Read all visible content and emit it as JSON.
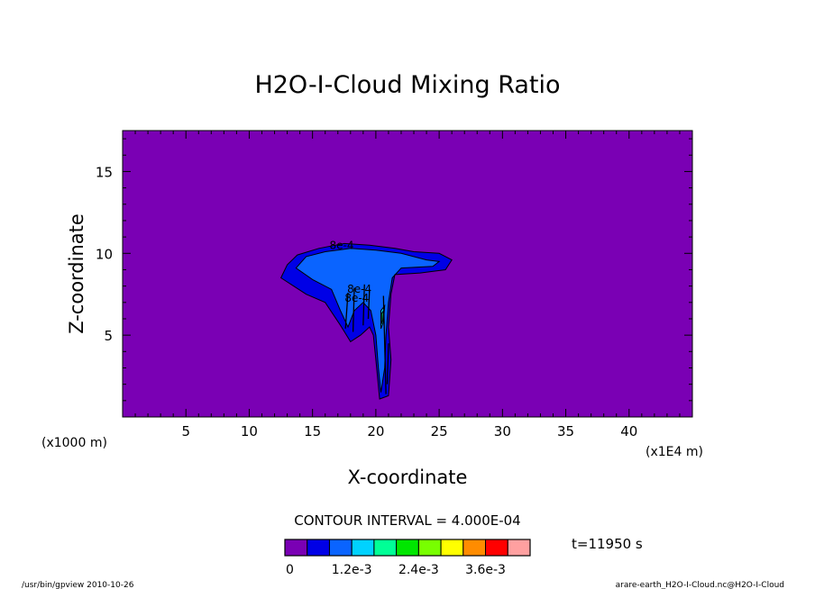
{
  "chart_data": {
    "type": "heatmap",
    "title": "H2O-I-Cloud Mixing Ratio",
    "xlabel": "X-coordinate",
    "ylabel": "Z-coordinate",
    "x_unit": "(x1E4 m)",
    "y_unit": "(x1000 m)",
    "xlim": [
      0,
      45
    ],
    "ylim": [
      0,
      17.5
    ],
    "x_ticks": [
      5,
      10,
      15,
      20,
      25,
      30,
      35,
      40
    ],
    "y_ticks": [
      5,
      10,
      15
    ],
    "contour_interval": "CONTOUR INTERVAL = 4.000E-04",
    "time_label": "t=11950 s",
    "contour_labels": [
      "8e-4",
      "8e-4",
      "8e-4"
    ],
    "colorbar": {
      "tick_labels": [
        "0",
        "1.2e-3",
        "2.4e-3",
        "3.6e-3"
      ],
      "colors": [
        "#7a00b4",
        "#0000e6",
        "#0a64ff",
        "#00d2ff",
        "#00ff96",
        "#00e600",
        "#78ff00",
        "#ffff00",
        "#ff8c00",
        "#ff0000",
        "#ffa0a0"
      ]
    },
    "levels": [
      0,
      0.0004,
      0.0008,
      0.0012,
      0.0016,
      0.002,
      0.0024,
      0.0028,
      0.0032,
      0.0036,
      0.004
    ],
    "background_value": 0,
    "regions": [
      {
        "level": 0.0004,
        "polygon": [
          [
            12.5,
            8.5
          ],
          [
            13.0,
            9.3
          ],
          [
            13.8,
            9.9
          ],
          [
            15.5,
            10.3
          ],
          [
            17.5,
            10.6
          ],
          [
            19.5,
            10.5
          ],
          [
            21.5,
            10.3
          ],
          [
            23.0,
            10.1
          ],
          [
            25.0,
            10.0
          ],
          [
            26.0,
            9.6
          ],
          [
            25.5,
            9.0
          ],
          [
            23.5,
            8.8
          ],
          [
            21.5,
            8.7
          ],
          [
            21.2,
            7.5
          ],
          [
            21.0,
            5.5
          ],
          [
            21.2,
            3.5
          ],
          [
            21.0,
            1.3
          ],
          [
            20.3,
            1.1
          ],
          [
            20.0,
            3.5
          ],
          [
            19.8,
            5.0
          ],
          [
            19.5,
            5.5
          ],
          [
            18.8,
            5.0
          ],
          [
            18.0,
            4.6
          ],
          [
            17.2,
            5.6
          ],
          [
            16.0,
            7.0
          ],
          [
            14.5,
            7.5
          ],
          [
            13.5,
            8.0
          ]
        ]
      },
      {
        "level": 0.0008,
        "polygon": [
          [
            13.7,
            9.1
          ],
          [
            14.5,
            9.8
          ],
          [
            16.0,
            10.1
          ],
          [
            18.0,
            10.3
          ],
          [
            20.0,
            10.2
          ],
          [
            22.0,
            10.0
          ],
          [
            24.0,
            9.6
          ],
          [
            25.0,
            9.5
          ],
          [
            24.5,
            9.2
          ],
          [
            22.0,
            9.1
          ],
          [
            21.3,
            8.5
          ],
          [
            21.0,
            7.0
          ],
          [
            20.8,
            5.0
          ],
          [
            20.7,
            3.0
          ],
          [
            20.4,
            1.5
          ],
          [
            20.2,
            3.0
          ],
          [
            20.0,
            5.0
          ],
          [
            19.6,
            6.5
          ],
          [
            19.0,
            7.0
          ],
          [
            18.3,
            6.5
          ],
          [
            17.8,
            5.5
          ],
          [
            17.2,
            6.5
          ],
          [
            16.5,
            7.8
          ],
          [
            15.0,
            8.4
          ]
        ]
      },
      {
        "level": 0.0012,
        "polygon": [
          [
            20.4,
            6.5
          ],
          [
            20.7,
            6.8
          ],
          [
            20.6,
            5.8
          ],
          [
            20.4,
            5.4
          ]
        ]
      },
      {
        "level": 0.0016,
        "polygon": [
          [
            20.45,
            6.3
          ],
          [
            20.6,
            6.5
          ],
          [
            20.55,
            5.9
          ],
          [
            20.45,
            5.7
          ]
        ]
      }
    ]
  },
  "footer": {
    "left": "/usr/bin/gpview  2010-10-26",
    "right": "arare-earth_H2O-I-Cloud.nc@H2O-I-Cloud"
  }
}
